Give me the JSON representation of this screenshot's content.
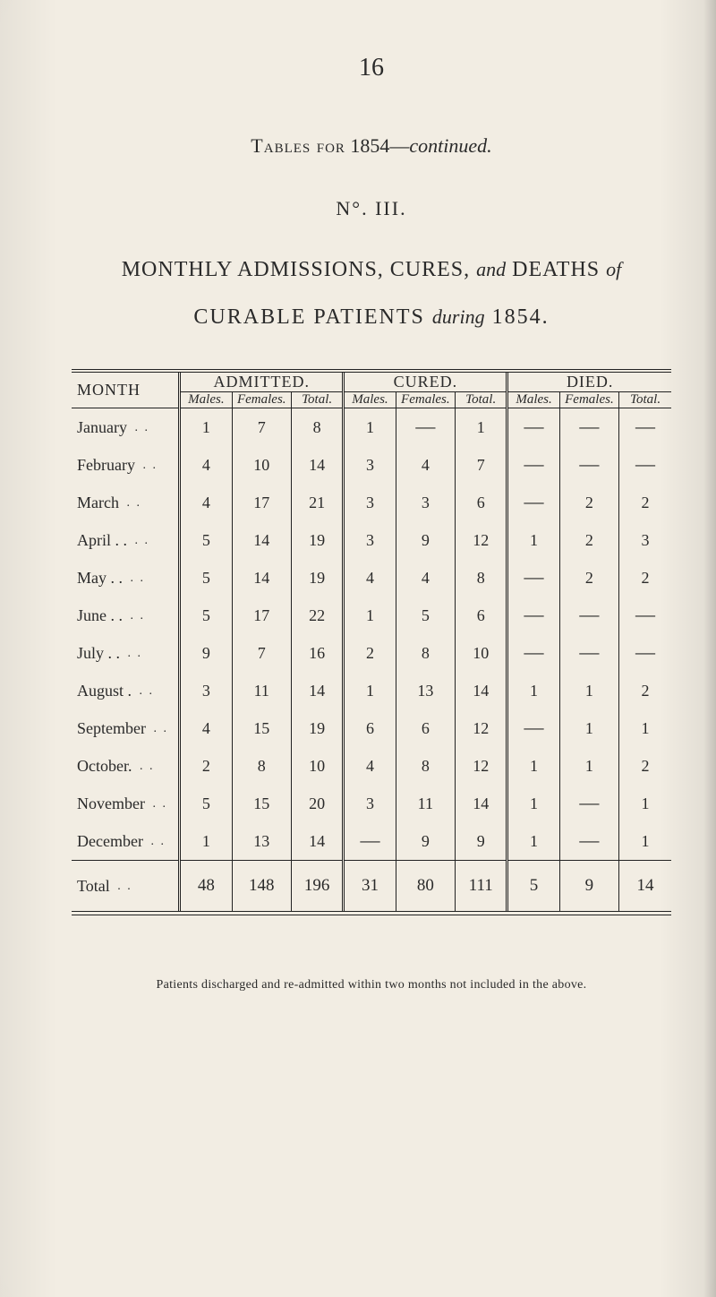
{
  "page_number": "16",
  "caption_prefix": "Tables for",
  "caption_year": " 1854—",
  "caption_suffix": "continued.",
  "table_number": "N°.  III.",
  "title_line1_a": "MONTHLY ADMISSIONS, CURES, ",
  "title_line1_b": "and",
  "title_line1_c": " DEATHS ",
  "title_line1_d": "of",
  "title_line2_a": "CURABLE PATIENTS ",
  "title_line2_b": "during",
  "title_line2_c": " 1854.",
  "col_month": "MONTH",
  "groups": [
    "ADMITTED.",
    "CURED.",
    "DIED."
  ],
  "subcols": [
    "Males.",
    "Females.",
    "Total.",
    "Males.",
    "Females.",
    "Total.",
    "Males.",
    "Females.",
    "Total."
  ],
  "rows": [
    {
      "m": "January",
      "d": ". .",
      "v": [
        "1",
        "7",
        "8",
        "1",
        "—",
        "1",
        "—",
        "—",
        "—"
      ]
    },
    {
      "m": "February",
      "d": ". .",
      "v": [
        "4",
        "10",
        "14",
        "3",
        "4",
        "7",
        "—",
        "—",
        "—"
      ]
    },
    {
      "m": "March",
      "d": ". .",
      "v": [
        "4",
        "17",
        "21",
        "3",
        "3",
        "6",
        "—",
        "2",
        "2"
      ]
    },
    {
      "m": "April . .",
      "d": ". .",
      "v": [
        "5",
        "14",
        "19",
        "3",
        "9",
        "12",
        "1",
        "2",
        "3"
      ]
    },
    {
      "m": "May . .",
      "d": ". .",
      "v": [
        "5",
        "14",
        "19",
        "4",
        "4",
        "8",
        "—",
        "2",
        "2"
      ]
    },
    {
      "m": "June . .",
      "d": ". .",
      "v": [
        "5",
        "17",
        "22",
        "1",
        "5",
        "6",
        "—",
        "—",
        "—"
      ]
    },
    {
      "m": "July . .",
      "d": ". .",
      "v": [
        "9",
        "7",
        "16",
        "2",
        "8",
        "10",
        "—",
        "—",
        "—"
      ]
    },
    {
      "m": "August .",
      "d": ". .",
      "v": [
        "3",
        "11",
        "14",
        "1",
        "13",
        "14",
        "1",
        "1",
        "2"
      ]
    },
    {
      "m": "September",
      "d": ". .",
      "v": [
        "4",
        "15",
        "19",
        "6",
        "6",
        "12",
        "—",
        "1",
        "1"
      ]
    },
    {
      "m": "October.",
      "d": ". .",
      "v": [
        "2",
        "8",
        "10",
        "4",
        "8",
        "12",
        "1",
        "1",
        "2"
      ]
    },
    {
      "m": "November",
      "d": ". .",
      "v": [
        "5",
        "15",
        "20",
        "3",
        "11",
        "14",
        "1",
        "—",
        "1"
      ]
    },
    {
      "m": "December",
      "d": ". .",
      "v": [
        "1",
        "13",
        "14",
        "—",
        "9",
        "9",
        "1",
        "—",
        "1"
      ]
    }
  ],
  "total_label": "Total",
  "total_dots": ". .",
  "totals": [
    "48",
    "148",
    "196",
    "31",
    "80",
    "111",
    "5",
    "9",
    "14"
  ],
  "footnote": "Patients discharged and re-admitted within two months not included in the above.",
  "colors": {
    "bg": "#f2ede3",
    "ink": "#2a2a2a",
    "rule": "#222"
  },
  "dash_glyph": "—"
}
